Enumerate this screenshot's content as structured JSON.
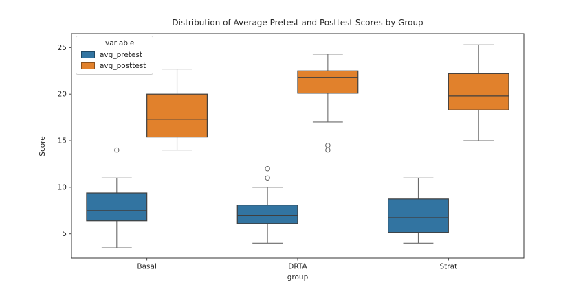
{
  "legend": {
    "title": "variable",
    "entries": [
      {
        "label": "avg_pretest",
        "color": "#3274a1"
      },
      {
        "label": "avg_posttest",
        "color": "#e1812c"
      }
    ]
  },
  "chart_data": {
    "type": "boxplot",
    "title": "Distribution of Average Pretest and Posttest Scores by Group",
    "xlabel": "group",
    "ylabel": "Score",
    "categories": [
      "Basal",
      "DRTA",
      "Strat"
    ],
    "yticks": [
      5,
      10,
      15,
      20,
      25
    ],
    "ylim": [
      2.4,
      26.5
    ],
    "grid": false,
    "legend_position": "upper left",
    "series": [
      {
        "name": "avg_pretest",
        "color": "#3274a1",
        "boxes": [
          {
            "category": "Basal",
            "whisker_low": 3.5,
            "q1": 6.4,
            "median": 7.5,
            "q3": 9.4,
            "whisker_high": 11.0,
            "outliers": [
              14.0
            ]
          },
          {
            "category": "DRTA",
            "whisker_low": 4.0,
            "q1": 6.1,
            "median": 7.0,
            "q3": 8.1,
            "whisker_high": 10.0,
            "outliers": [
              12.0,
              11.0
            ]
          },
          {
            "category": "Strat",
            "whisker_low": 4.0,
            "q1": 5.15,
            "median": 6.75,
            "q3": 8.75,
            "whisker_high": 11.0,
            "outliers": []
          }
        ]
      },
      {
        "name": "avg_posttest",
        "color": "#e1812c",
        "boxes": [
          {
            "category": "Basal",
            "whisker_low": 14.0,
            "q1": 15.4,
            "median": 17.3,
            "q3": 20.0,
            "whisker_high": 22.7,
            "outliers": []
          },
          {
            "category": "DRTA",
            "whisker_low": 17.0,
            "q1": 20.1,
            "median": 21.8,
            "q3": 22.5,
            "whisker_high": 24.3,
            "outliers": [
              14.5,
              14.0
            ]
          },
          {
            "category": "Strat",
            "whisker_low": 15.0,
            "q1": 18.3,
            "median": 19.8,
            "q3": 22.2,
            "whisker_high": 25.3,
            "outliers": []
          }
        ]
      }
    ]
  }
}
